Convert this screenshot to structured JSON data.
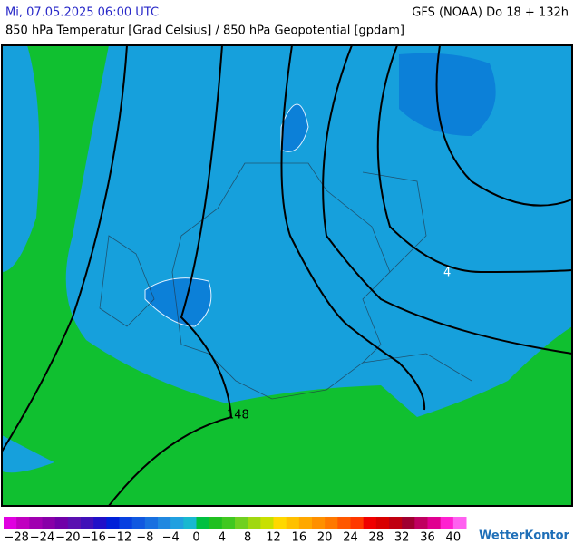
{
  "header": {
    "datetime": "Mi, 07.05.2025 06:00 UTC",
    "model": "GFS (NOAA) Do 18 + 132h",
    "subtitle": "850 hPa Temperatur [Grad Celsius] / 850 hPa Geopotential [gpdam]"
  },
  "contour_labels": [
    "148",
    "4"
  ],
  "colorbar": {
    "range": [
      -30,
      42
    ],
    "ticks": [
      {
        "value": -28,
        "label": "−28"
      },
      {
        "value": -24,
        "label": "−24"
      },
      {
        "value": -20,
        "label": "−20"
      },
      {
        "value": -16,
        "label": "−16"
      },
      {
        "value": -12,
        "label": "−12"
      },
      {
        "value": -8,
        "label": "−8"
      },
      {
        "value": -4,
        "label": "−4"
      },
      0,
      4,
      8,
      12,
      16,
      20,
      24,
      28,
      32,
      36,
      40
    ],
    "colors": [
      "#e000e0",
      "#c000c0",
      "#a000b0",
      "#8800a8",
      "#7000a8",
      "#5a10b0",
      "#4010b8",
      "#2010c8",
      "#0020d8",
      "#0840e0",
      "#1058e0",
      "#1870e0",
      "#2088e0",
      "#20a0e0",
      "#18b8d0",
      "#00c040",
      "#20c020",
      "#40c820",
      "#70d020",
      "#a0d810",
      "#c8e000",
      "#ffd800",
      "#ffc000",
      "#ffa800",
      "#ff9000",
      "#ff7800",
      "#ff5800",
      "#ff3800",
      "#f00000",
      "#d80000",
      "#c00010",
      "#a00030",
      "#c00060",
      "#e00090",
      "#ff20d0",
      "#ff60f0"
    ]
  },
  "brand": "WetterKontor"
}
